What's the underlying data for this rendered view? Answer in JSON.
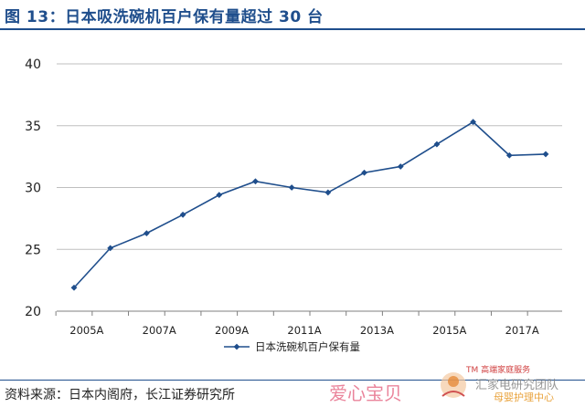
{
  "header": {
    "title": "图 13：日本吸洗碗机百户保有量超过 30 台"
  },
  "footer": {
    "source": "资料来源：日本内阁府，长江证券研究所"
  },
  "watermark": {
    "left_text": "爱心宝贝",
    "tm_text": "TM 高端家庭服务",
    "right_text": "汇家电研究团队",
    "right_text2": "母婴护理中心"
  },
  "colors": {
    "line": "#1f4e8c",
    "grid": "#bfbfbf",
    "title": "#1f4e8c"
  },
  "chart_data": {
    "type": "line",
    "title": "",
    "xlabel": "",
    "ylabel": "",
    "ylim": [
      20,
      40
    ],
    "yticks": [
      20,
      25,
      30,
      35,
      40
    ],
    "grid": true,
    "legend_position": "bottom-center",
    "x": [
      "2005A",
      "2006A",
      "2007A",
      "2008A",
      "2009A",
      "2010A",
      "2011A",
      "2012A",
      "2013A",
      "2014A",
      "2015A",
      "2016A",
      "2017A",
      "2018A"
    ],
    "xtick_labels": [
      "2005A",
      "2007A",
      "2009A",
      "2011A",
      "2013A",
      "2015A",
      "2017A"
    ],
    "series": [
      {
        "name": "日本洗碗机百户保有量",
        "values": [
          21.9,
          25.1,
          26.3,
          27.8,
          29.4,
          30.5,
          30.0,
          29.6,
          31.2,
          31.7,
          33.5,
          35.3,
          32.6,
          32.7
        ]
      }
    ]
  }
}
